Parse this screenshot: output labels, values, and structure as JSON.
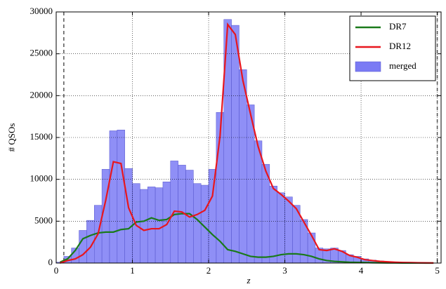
{
  "chart_data": {
    "type": "histogram",
    "xlabel": "z",
    "ylabel": "# QSOs",
    "bins": [
      0,
      0.1,
      0.2,
      0.3,
      0.4,
      0.5,
      0.6,
      0.7,
      0.8,
      0.9,
      1.0,
      1.1,
      1.2,
      1.3,
      1.4,
      1.5,
      1.6,
      1.7,
      1.8,
      1.9,
      2.0,
      2.1,
      2.2,
      2.3,
      2.4,
      2.5,
      2.6,
      2.7,
      2.8,
      2.9,
      3.0,
      3.1,
      3.2,
      3.3,
      3.4,
      3.5,
      3.6,
      3.7,
      3.8,
      3.9,
      4.0,
      4.1,
      4.2,
      4.3,
      4.4,
      4.5,
      4.6,
      4.7,
      4.8,
      4.9,
      5.0
    ],
    "counts": [
      100,
      800,
      1800,
      3900,
      5100,
      6900,
      11200,
      15800,
      15900,
      11300,
      9500,
      8800,
      9100,
      9000,
      9700,
      12200,
      11700,
      11100,
      9500,
      9300,
      11200,
      18000,
      29100,
      28400,
      23100,
      18900,
      14600,
      11800,
      9200,
      8400,
      7900,
      6900,
      5200,
      3600,
      1800,
      1700,
      1800,
      1500,
      1000,
      800,
      500,
      350,
      250,
      180,
      120,
      90,
      60,
      40,
      30,
      20
    ],
    "hist_name": "merged",
    "hist_color": "#7b7bf4",
    "x": [
      0.05,
      0.15,
      0.25,
      0.35,
      0.45,
      0.55,
      0.65,
      0.75,
      0.85,
      0.95,
      1.05,
      1.15,
      1.25,
      1.35,
      1.45,
      1.55,
      1.65,
      1.75,
      1.85,
      1.95,
      2.05,
      2.15,
      2.25,
      2.35,
      2.45,
      2.55,
      2.65,
      2.75,
      2.85,
      2.95,
      3.05,
      3.15,
      3.25,
      3.35,
      3.45,
      3.55,
      3.65,
      3.75,
      3.85,
      3.95,
      4.05,
      4.15,
      4.25,
      4.35,
      4.45,
      4.55,
      4.65,
      4.75,
      4.85,
      4.95
    ],
    "series": [
      {
        "name": "DR7",
        "color": "#1a7a1a",
        "values": [
          100,
          500,
          1500,
          2900,
          3300,
          3600,
          3700,
          3700,
          4000,
          4100,
          4900,
          5000,
          5400,
          5100,
          5200,
          5800,
          5900,
          5900,
          5200,
          4300,
          3400,
          2600,
          1600,
          1400,
          1100,
          800,
          700,
          700,
          800,
          1000,
          1100,
          1100,
          1000,
          800,
          500,
          300,
          200,
          150,
          100,
          80,
          60,
          40,
          30,
          20,
          15,
          10,
          8,
          5,
          3,
          2
        ]
      },
      {
        "name": "DR12",
        "color": "#e8161e",
        "values": [
          0,
          300,
          500,
          1000,
          1900,
          3500,
          7500,
          12100,
          11900,
          6600,
          4500,
          3900,
          4100,
          4100,
          4600,
          6200,
          6100,
          5500,
          5800,
          6300,
          8000,
          15200,
          28500,
          27300,
          21800,
          17800,
          13900,
          11000,
          8900,
          8200,
          7400,
          6500,
          4900,
          3300,
          1600,
          1500,
          1700,
          1400,
          900,
          700,
          400,
          300,
          200,
          150,
          100,
          70,
          50,
          30,
          20,
          10
        ]
      }
    ],
    "vlines": [
      0.1,
      5.0
    ],
    "xlim": [
      0,
      5.05
    ],
    "ylim": [
      0,
      30000
    ],
    "xticks": [
      0,
      1,
      2,
      3,
      4,
      5
    ],
    "yticks": [
      0,
      5000,
      10000,
      15000,
      20000,
      25000,
      30000
    ],
    "grid": true,
    "legend": "upper right"
  }
}
